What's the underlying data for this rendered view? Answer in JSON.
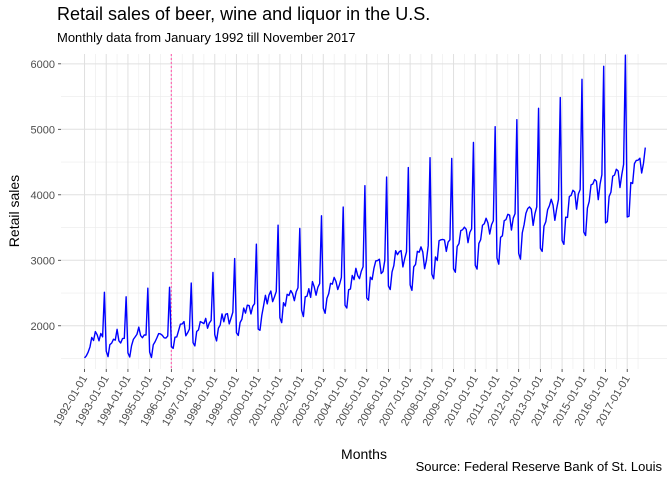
{
  "chart_data": {
    "type": "line",
    "title": "Retail sales of beer, wine and liquor in the U.S.",
    "subtitle": "Monthly data from January 1992 till November 2017",
    "caption": "Source: Federal Reserve Bank of St. Louis",
    "xlabel": "Months",
    "ylabel": "Retail sales",
    "xlim": [
      "1990-12-01",
      "2018-11-01"
    ],
    "ylim": [
      1340,
      6150
    ],
    "y_ticks": [
      2000,
      3000,
      4000,
      5000,
      6000
    ],
    "x_tick_labels": [
      "1992-01-01",
      "1993-01-01",
      "1994-01-01",
      "1995-01-01",
      "1996-01-01",
      "1997-01-01",
      "1998-01-01",
      "1999-01-01",
      "2000-01-01",
      "2001-01-01",
      "2002-01-01",
      "2003-01-01",
      "2004-01-01",
      "2005-01-01",
      "2006-01-01",
      "2007-01-01",
      "2008-01-01",
      "2009-01-01",
      "2010-01-01",
      "2011-01-01",
      "2012-01-01",
      "2013-01-01",
      "2014-01-01",
      "2015-01-01",
      "2016-01-01",
      "2017-01-01"
    ],
    "grid": true,
    "reference_line": {
      "x": "1996-01-01",
      "color": "#ff69b4",
      "style": "dotted"
    },
    "series": [
      {
        "color": "#0000ff",
        "start": "1992-01",
        "frequency": "monthly",
        "values": [
          1509,
          1541,
          1597,
          1675,
          1822,
          1775,
          1912,
          1862,
          1770,
          1882,
          1831,
          2511,
          1614,
          1528,
          1711,
          1735,
          1794,
          1781,
          1946,
          1771,
          1737,
          1804,
          1808,
          2442,
          1585,
          1523,
          1696,
          1792,
          1831,
          1871,
          1979,
          1851,
          1818,
          1860,
          1859,
          2573,
          1600,
          1516,
          1709,
          1756,
          1815,
          1881,
          1876,
          1854,
          1817,
          1812,
          1844,
          2587,
          1684,
          1655,
          1825,
          1830,
          1926,
          2025,
          2028,
          2064,
          1847,
          1893,
          1951,
          2652,
          1742,
          1692,
          1913,
          1937,
          2064,
          2050,
          2032,
          2113,
          1962,
          2044,
          2081,
          2814,
          1864,
          1769,
          1962,
          2011,
          2181,
          2061,
          2175,
          2186,
          2029,
          2117,
          2208,
          3027,
          1893,
          1852,
          2050,
          2100,
          2270,
          2193,
          2315,
          2309,
          2181,
          2297,
          2337,
          3245,
          1950,
          1932,
          2157,
          2307,
          2465,
          2334,
          2471,
          2531,
          2368,
          2441,
          2524,
          3536,
          2123,
          2048,
          2353,
          2301,
          2480,
          2463,
          2538,
          2491,
          2383,
          2518,
          2581,
          3486,
          2238,
          2141,
          2442,
          2452,
          2566,
          2433,
          2675,
          2594,
          2467,
          2588,
          2645,
          3679,
          2270,
          2190,
          2418,
          2491,
          2648,
          2636,
          2739,
          2677,
          2553,
          2633,
          2738,
          3813,
          2313,
          2271,
          2550,
          2562,
          2768,
          2705,
          2877,
          2768,
          2720,
          2833,
          2901,
          4138,
          2425,
          2391,
          2742,
          2706,
          2880,
          2990,
          2996,
          3016,
          2797,
          2829,
          2999,
          4271,
          2607,
          2554,
          2822,
          2919,
          3146,
          3086,
          3131,
          3147,
          2898,
          3026,
          3131,
          4416,
          2624,
          2541,
          2900,
          2937,
          3137,
          3123,
          3205,
          3126,
          2872,
          3000,
          3223,
          4566,
          2788,
          2718,
          3051,
          2997,
          3299,
          3313,
          3318,
          3310,
          3136,
          3279,
          3312,
          4556,
          2871,
          2818,
          3211,
          3254,
          3453,
          3466,
          3506,
          3473,
          3269,
          3425,
          3479,
          4799,
          2923,
          2866,
          3258,
          3315,
          3535,
          3558,
          3642,
          3572,
          3401,
          3543,
          3604,
          5039,
          3035,
          2940,
          3351,
          3373,
          3604,
          3622,
          3702,
          3689,
          3461,
          3643,
          3712,
          5147,
          3107,
          3017,
          3419,
          3543,
          3717,
          3788,
          3815,
          3780,
          3532,
          3712,
          3816,
          5320,
          3183,
          3136,
          3522,
          3589,
          3772,
          3834,
          3932,
          3843,
          3610,
          3786,
          3929,
          5485,
          3302,
          3244,
          3658,
          3654,
          3973,
          3991,
          4069,
          4042,
          3780,
          4012,
          4081,
          5763,
          3432,
          3378,
          3798,
          3898,
          4152,
          4165,
          4233,
          4207,
          3926,
          4164,
          4307,
          5961,
          3571,
          3591,
          3975,
          4039,
          4284,
          4301,
          4390,
          4364,
          4111,
          4306,
          4464,
          6131,
          3661,
          3673,
          4187,
          4173,
          4476,
          4525,
          4528,
          4559,
          4333,
          4480,
          4721
        ]
      }
    ]
  }
}
